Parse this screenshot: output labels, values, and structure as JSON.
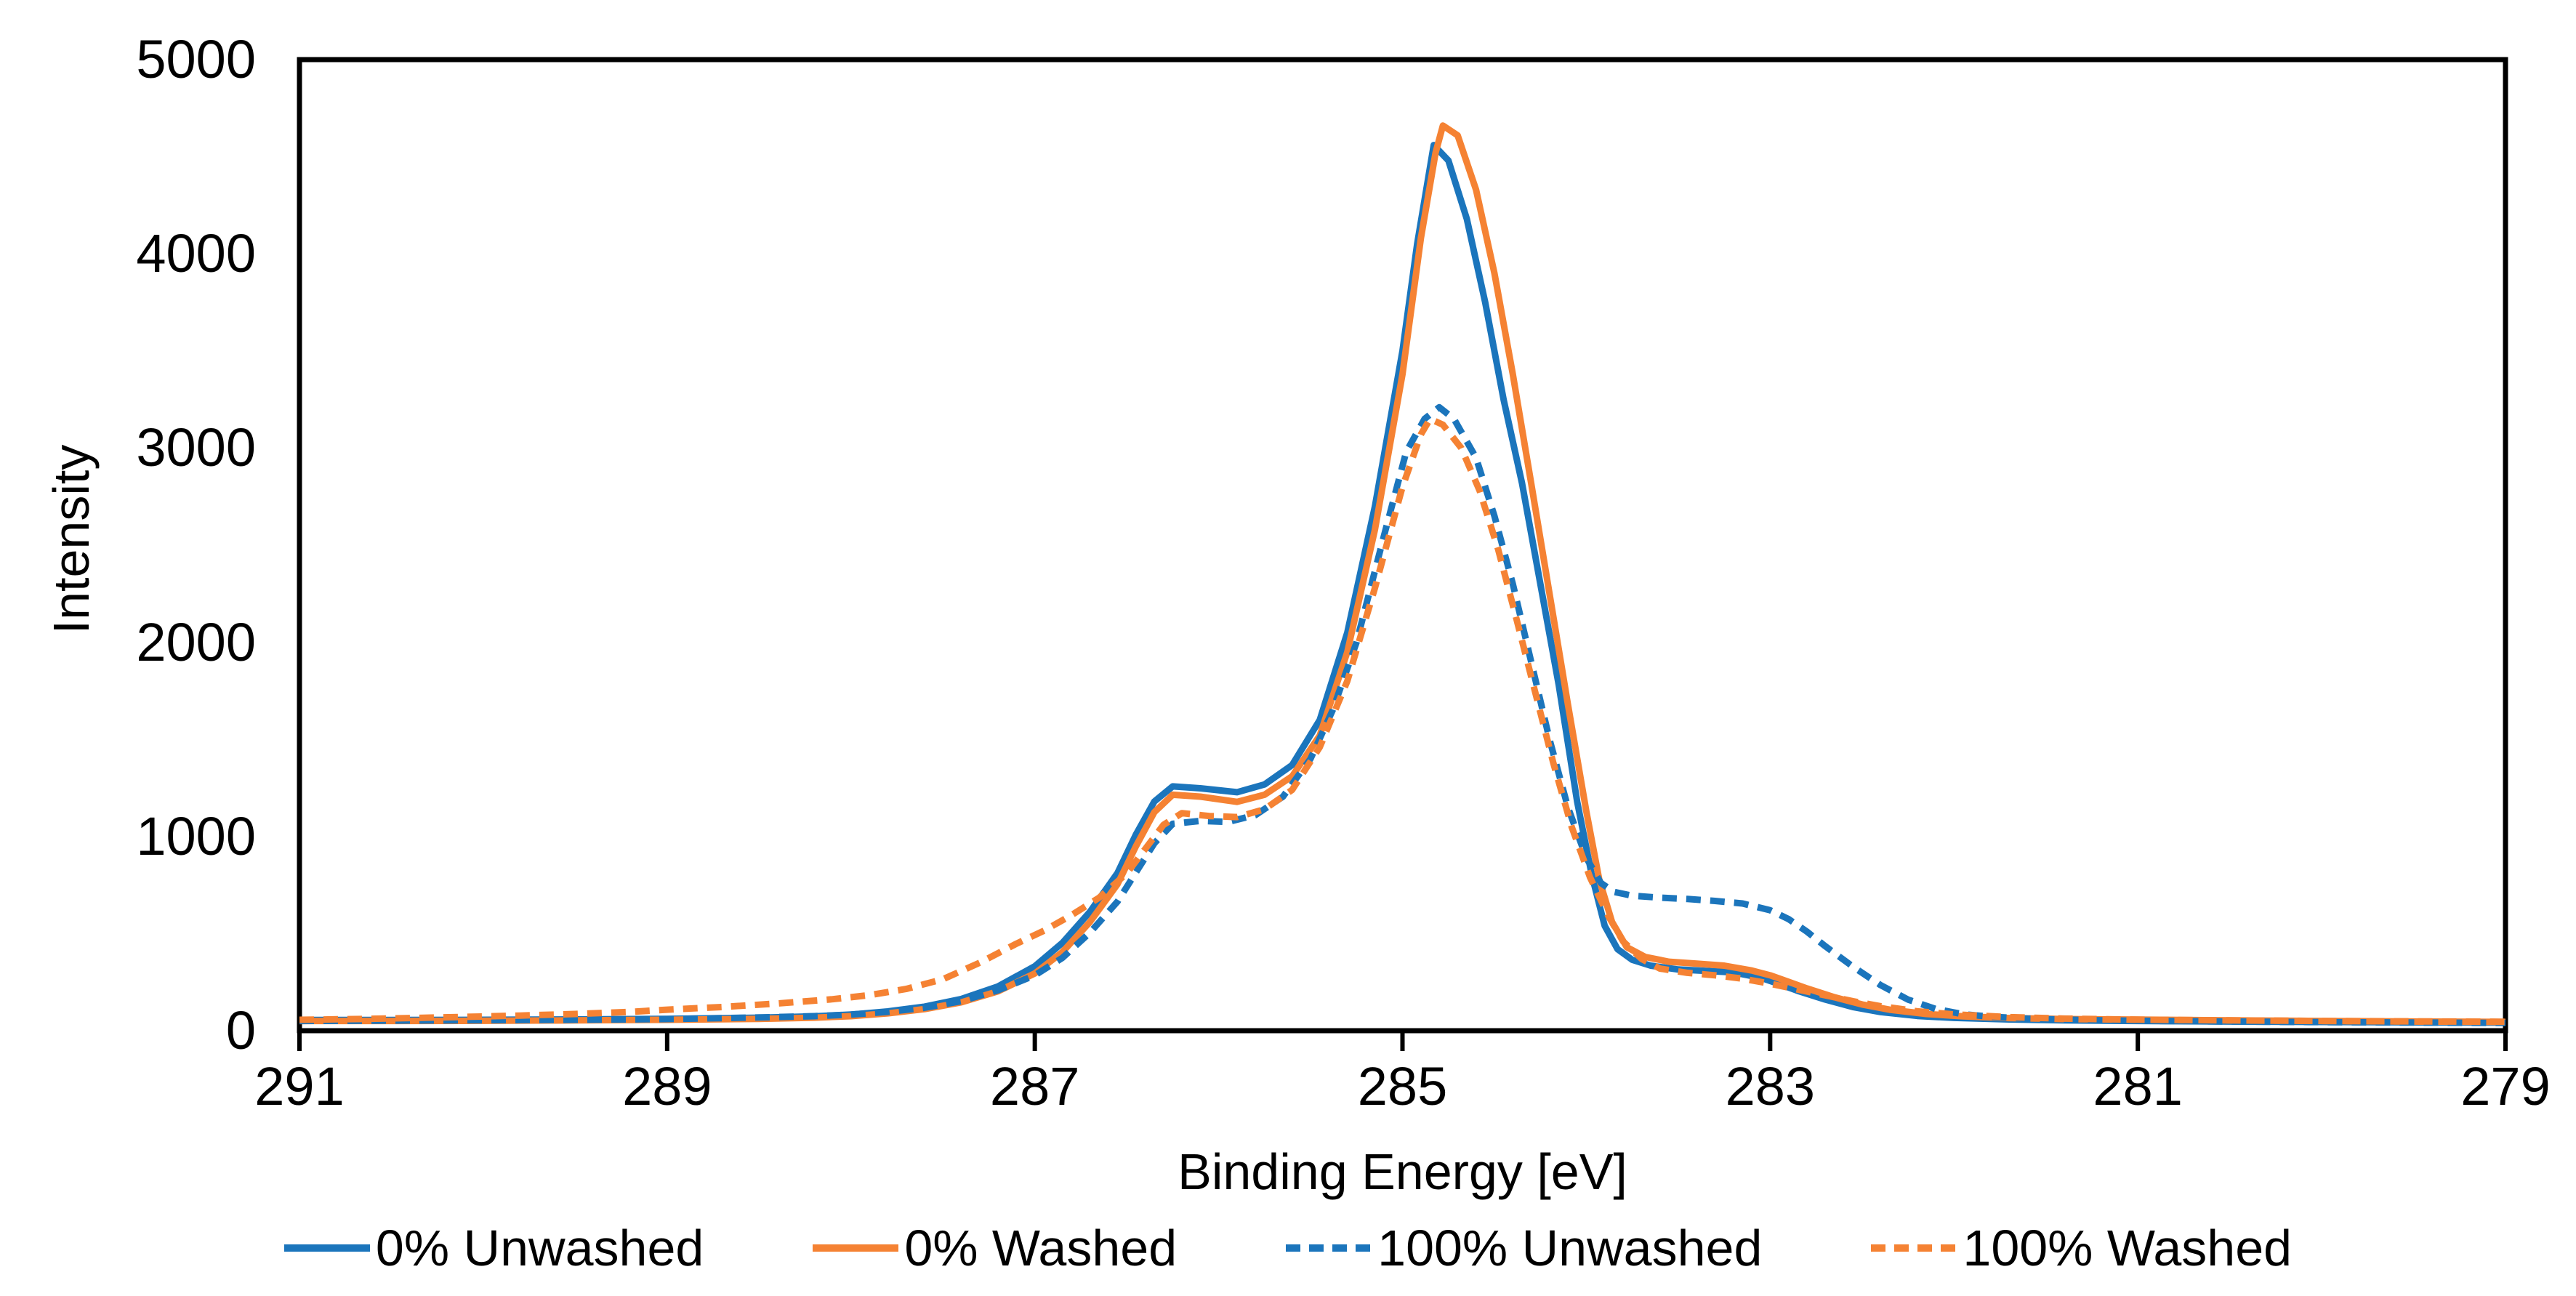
{
  "chart_data": {
    "type": "line",
    "title": "",
    "xlabel": "Binding Energy [eV]",
    "ylabel": "Intensity",
    "xlim": [
      291,
      279
    ],
    "ylim": [
      0,
      5000
    ],
    "x_reversed": true,
    "grid": false,
    "legend_position": "bottom",
    "axis_color": "#000000",
    "background_color": "#ffffff",
    "x_ticks": [
      291,
      289,
      287,
      285,
      283,
      281,
      279
    ],
    "y_ticks": [
      0,
      1000,
      2000,
      3000,
      4000,
      5000
    ],
    "series": [
      {
        "name": "0% Unwashed",
        "color": "#1B75BC",
        "line_style": "solid",
        "points": [
          [
            291,
            55
          ],
          [
            290.5,
            55
          ],
          [
            290,
            56
          ],
          [
            289.5,
            58
          ],
          [
            289,
            61
          ],
          [
            288.5,
            67
          ],
          [
            288.2,
            74
          ],
          [
            288,
            83
          ],
          [
            287.8,
            99
          ],
          [
            287.6,
            124
          ],
          [
            287.4,
            163
          ],
          [
            287.2,
            228
          ],
          [
            287,
            332
          ],
          [
            286.85,
            452
          ],
          [
            286.7,
            612
          ],
          [
            286.55,
            812
          ],
          [
            286.45,
            1010
          ],
          [
            286.35,
            1180
          ],
          [
            286.25,
            1258
          ],
          [
            286.1,
            1248
          ],
          [
            285.9,
            1228
          ],
          [
            285.75,
            1268
          ],
          [
            285.6,
            1368
          ],
          [
            285.45,
            1600
          ],
          [
            285.3,
            2050
          ],
          [
            285.15,
            2700
          ],
          [
            285.0,
            3500
          ],
          [
            284.92,
            4050
          ],
          [
            284.83,
            4560
          ],
          [
            284.75,
            4480
          ],
          [
            284.65,
            4180
          ],
          [
            284.55,
            3750
          ],
          [
            284.45,
            3250
          ],
          [
            284.35,
            2820
          ],
          [
            284.25,
            2300
          ],
          [
            284.15,
            1780
          ],
          [
            284.05,
            1180
          ],
          [
            283.97,
            800
          ],
          [
            283.9,
            540
          ],
          [
            283.83,
            420
          ],
          [
            283.75,
            365
          ],
          [
            283.65,
            335
          ],
          [
            283.5,
            315
          ],
          [
            283.35,
            308
          ],
          [
            283.2,
            300
          ],
          [
            283.05,
            272
          ],
          [
            282.95,
            240
          ],
          [
            282.85,
            205
          ],
          [
            282.7,
            160
          ],
          [
            282.55,
            122
          ],
          [
            282.4,
            96
          ],
          [
            282.2,
            76
          ],
          [
            282.0,
            66
          ],
          [
            281.7,
            58
          ],
          [
            281.4,
            53
          ],
          [
            281.0,
            50
          ],
          [
            280.5,
            47
          ],
          [
            280.0,
            45
          ],
          [
            279.5,
            43
          ],
          [
            279.0,
            42
          ]
        ]
      },
      {
        "name": "0% Washed",
        "color": "#F58233",
        "line_style": "solid",
        "points": [
          [
            291,
            50
          ],
          [
            290.5,
            50
          ],
          [
            290,
            51
          ],
          [
            289.5,
            53
          ],
          [
            289,
            56
          ],
          [
            288.5,
            61
          ],
          [
            288.2,
            67
          ],
          [
            288,
            75
          ],
          [
            287.8,
            89
          ],
          [
            287.6,
            111
          ],
          [
            287.4,
            146
          ],
          [
            287.2,
            203
          ],
          [
            287,
            295
          ],
          [
            286.85,
            405
          ],
          [
            286.7,
            560
          ],
          [
            286.55,
            755
          ],
          [
            286.45,
            950
          ],
          [
            286.35,
            1125
          ],
          [
            286.25,
            1215
          ],
          [
            286.1,
            1205
          ],
          [
            285.9,
            1178
          ],
          [
            285.75,
            1215
          ],
          [
            285.6,
            1310
          ],
          [
            285.45,
            1520
          ],
          [
            285.3,
            1950
          ],
          [
            285.15,
            2580
          ],
          [
            285.0,
            3380
          ],
          [
            284.9,
            4080
          ],
          [
            284.82,
            4520
          ],
          [
            284.78,
            4660
          ],
          [
            284.7,
            4610
          ],
          [
            284.6,
            4330
          ],
          [
            284.5,
            3900
          ],
          [
            284.4,
            3380
          ],
          [
            284.3,
            2820
          ],
          [
            284.2,
            2250
          ],
          [
            284.1,
            1680
          ],
          [
            284.0,
            1130
          ],
          [
            283.93,
            780
          ],
          [
            283.86,
            560
          ],
          [
            283.78,
            430
          ],
          [
            283.68,
            380
          ],
          [
            283.55,
            355
          ],
          [
            283.4,
            345
          ],
          [
            283.25,
            335
          ],
          [
            283.1,
            310
          ],
          [
            283.0,
            285
          ],
          [
            282.9,
            252
          ],
          [
            282.8,
            218
          ],
          [
            282.65,
            172
          ],
          [
            282.5,
            135
          ],
          [
            282.35,
            108
          ],
          [
            282.15,
            86
          ],
          [
            281.95,
            74
          ],
          [
            281.7,
            65
          ],
          [
            281.4,
            60
          ],
          [
            281.0,
            57
          ],
          [
            280.5,
            53
          ],
          [
            280.0,
            50
          ],
          [
            279.5,
            47
          ],
          [
            279.0,
            45
          ]
        ]
      },
      {
        "name": "100% Unwashed",
        "color": "#1B75BC",
        "line_style": "dashed",
        "points": [
          [
            291,
            50
          ],
          [
            290.5,
            52
          ],
          [
            290,
            54
          ],
          [
            289.5,
            56
          ],
          [
            289,
            60
          ],
          [
            288.5,
            68
          ],
          [
            288.2,
            75
          ],
          [
            288,
            83
          ],
          [
            287.8,
            97
          ],
          [
            287.6,
            118
          ],
          [
            287.4,
            152
          ],
          [
            287.2,
            208
          ],
          [
            287,
            285
          ],
          [
            286.85,
            375
          ],
          [
            286.7,
            505
          ],
          [
            286.55,
            665
          ],
          [
            286.45,
            815
          ],
          [
            286.35,
            965
          ],
          [
            286.25,
            1065
          ],
          [
            286.1,
            1080
          ],
          [
            285.95,
            1075
          ],
          [
            285.8,
            1110
          ],
          [
            285.65,
            1205
          ],
          [
            285.5,
            1400
          ],
          [
            285.38,
            1650
          ],
          [
            285.25,
            2000
          ],
          [
            285.1,
            2550
          ],
          [
            284.98,
            2980
          ],
          [
            284.88,
            3150
          ],
          [
            284.8,
            3210
          ],
          [
            284.72,
            3150
          ],
          [
            284.6,
            2950
          ],
          [
            284.5,
            2650
          ],
          [
            284.4,
            2300
          ],
          [
            284.3,
            1900
          ],
          [
            284.2,
            1500
          ],
          [
            284.1,
            1150
          ],
          [
            284.0,
            890
          ],
          [
            283.92,
            760
          ],
          [
            283.85,
            715
          ],
          [
            283.75,
            695
          ],
          [
            283.6,
            685
          ],
          [
            283.45,
            678
          ],
          [
            283.3,
            668
          ],
          [
            283.15,
            655
          ],
          [
            283.0,
            620
          ],
          [
            282.9,
            575
          ],
          [
            282.8,
            510
          ],
          [
            282.7,
            435
          ],
          [
            282.55,
            330
          ],
          [
            282.4,
            235
          ],
          [
            282.25,
            160
          ],
          [
            282.1,
            112
          ],
          [
            281.95,
            85
          ],
          [
            281.8,
            72
          ],
          [
            281.6,
            62
          ],
          [
            281.3,
            55
          ],
          [
            281.0,
            51
          ],
          [
            280.5,
            47
          ],
          [
            280.0,
            44
          ],
          [
            279.5,
            42
          ],
          [
            279.0,
            40
          ]
        ]
      },
      {
        "name": "100% Washed",
        "color": "#F58233",
        "line_style": "dashed",
        "points": [
          [
            291,
            56
          ],
          [
            290.7,
            60
          ],
          [
            290.4,
            65
          ],
          [
            290.1,
            71
          ],
          [
            289.8,
            78
          ],
          [
            289.5,
            86
          ],
          [
            289.2,
            97
          ],
          [
            289.0,
            108
          ],
          [
            288.7,
            122
          ],
          [
            288.4,
            140
          ],
          [
            288.1,
            162
          ],
          [
            287.9,
            183
          ],
          [
            287.7,
            215
          ],
          [
            287.5,
            265
          ],
          [
            287.3,
            350
          ],
          [
            287.1,
            448
          ],
          [
            286.95,
            515
          ],
          [
            286.8,
            595
          ],
          [
            286.65,
            685
          ],
          [
            286.5,
            810
          ],
          [
            286.4,
            935
          ],
          [
            286.3,
            1060
          ],
          [
            286.2,
            1120
          ],
          [
            286.05,
            1105
          ],
          [
            285.9,
            1100
          ],
          [
            285.75,
            1140
          ],
          [
            285.6,
            1240
          ],
          [
            285.45,
            1460
          ],
          [
            285.3,
            1800
          ],
          [
            285.15,
            2280
          ],
          [
            285.0,
            2800
          ],
          [
            284.9,
            3070
          ],
          [
            284.85,
            3150
          ],
          [
            284.78,
            3120
          ],
          [
            284.68,
            3000
          ],
          [
            284.58,
            2780
          ],
          [
            284.48,
            2480
          ],
          [
            284.38,
            2120
          ],
          [
            284.28,
            1750
          ],
          [
            284.18,
            1380
          ],
          [
            284.08,
            1050
          ],
          [
            283.98,
            790
          ],
          [
            283.88,
            590
          ],
          [
            283.8,
            460
          ],
          [
            283.7,
            370
          ],
          [
            283.6,
            320
          ],
          [
            283.45,
            298
          ],
          [
            283.3,
            285
          ],
          [
            283.15,
            268
          ],
          [
            283.0,
            242
          ],
          [
            282.85,
            212
          ],
          [
            282.7,
            182
          ],
          [
            282.55,
            152
          ],
          [
            282.4,
            126
          ],
          [
            282.2,
            100
          ],
          [
            282.0,
            84
          ],
          [
            281.7,
            70
          ],
          [
            281.4,
            62
          ],
          [
            281.0,
            57
          ],
          [
            280.5,
            53
          ],
          [
            280.0,
            50
          ],
          [
            279.5,
            48
          ],
          [
            279.0,
            46
          ]
        ]
      }
    ]
  }
}
